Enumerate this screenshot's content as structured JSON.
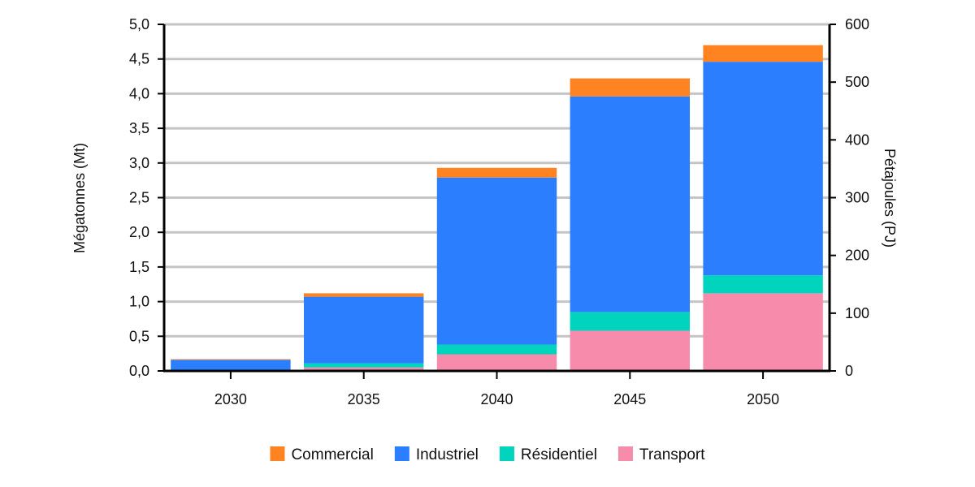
{
  "chart_data": {
    "type": "bar",
    "stacked": true,
    "categories": [
      "2030",
      "2035",
      "2040",
      "2045",
      "2050"
    ],
    "series": [
      {
        "name": "Transport",
        "color": "#f78bab",
        "values": [
          0.0,
          0.05,
          0.24,
          0.58,
          1.12
        ]
      },
      {
        "name": "Résidentiel",
        "color": "#00d4bd",
        "values": [
          0.0,
          0.06,
          0.14,
          0.27,
          0.26
        ]
      },
      {
        "name": "Industriel",
        "color": "#2b7fff",
        "values": [
          0.16,
          0.96,
          2.41,
          3.11,
          3.08
        ]
      },
      {
        "name": "Commercial",
        "color": "#ff8320",
        "values": [
          0.01,
          0.05,
          0.14,
          0.26,
          0.24
        ]
      }
    ],
    "legend_order": [
      "Commercial",
      "Industriel",
      "Résidentiel",
      "Transport"
    ],
    "legend_position": "bottom",
    "ylabel": "Mégatonnes (Mt)",
    "y2label": "Pétajoules (PJ)",
    "ylim": [
      0,
      5
    ],
    "y2lim": [
      0,
      600
    ],
    "yticks": [
      "0,0",
      "0,5",
      "1,0",
      "1,5",
      "2,0",
      "2,5",
      "3,0",
      "3,5",
      "4,0",
      "4,5",
      "5,0"
    ],
    "y2ticks": [
      "0",
      "100",
      "200",
      "300",
      "400",
      "500",
      "600"
    ],
    "grid": true
  }
}
